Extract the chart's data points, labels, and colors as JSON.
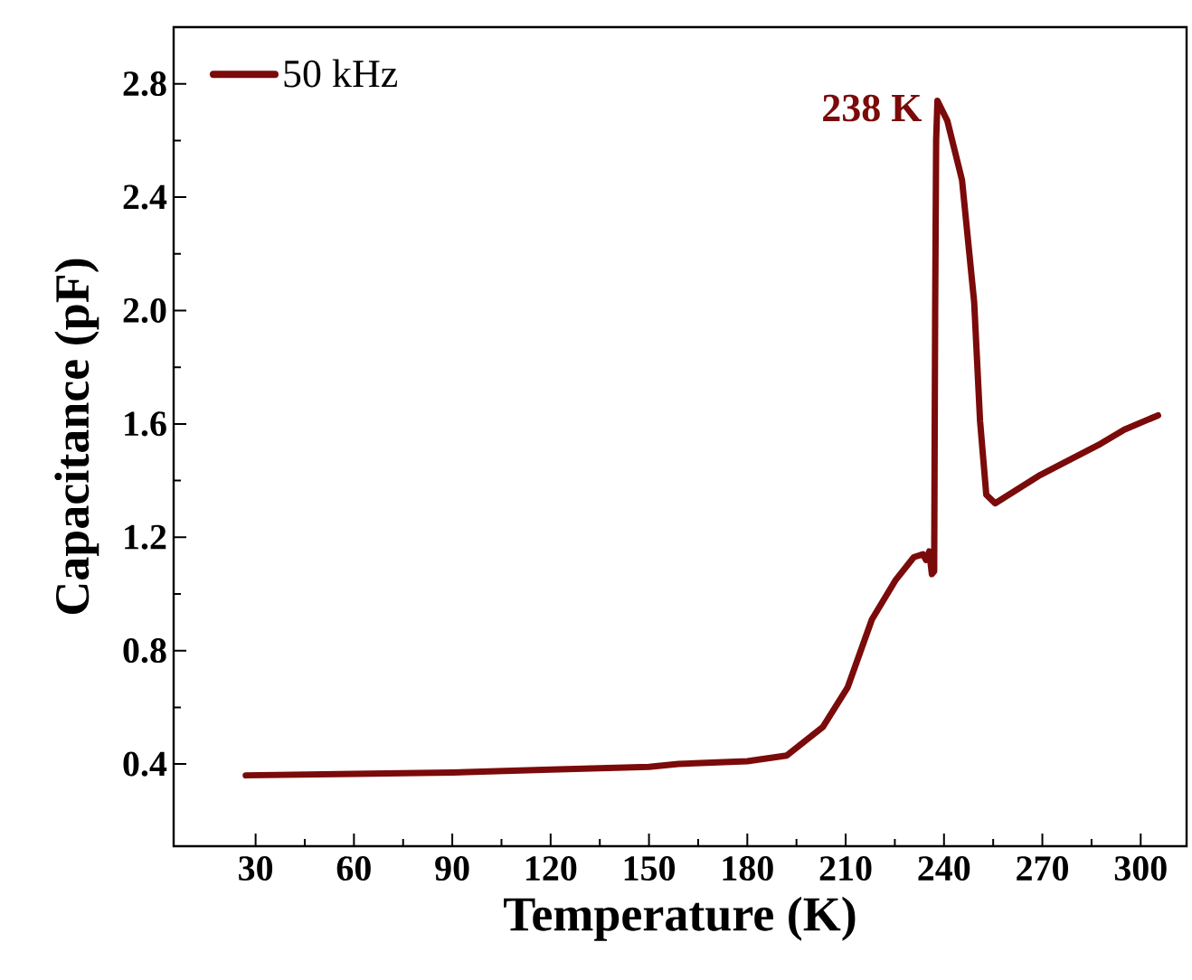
{
  "chart_data": {
    "type": "line",
    "xlabel": "Temperature (K)",
    "ylabel": "Capacitance (pF)",
    "xlim": [
      5,
      314
    ],
    "ylim": [
      0.11,
      3.0
    ],
    "xticks": [
      30,
      60,
      90,
      120,
      150,
      180,
      210,
      240,
      270,
      300
    ],
    "yticks": [
      0.4,
      0.8,
      1.2,
      1.6,
      {
        "value": 2.0,
        "label": "2.0"
      },
      2.4,
      2.8
    ],
    "legend": "top left",
    "annotations": [
      {
        "text": "238 K",
        "x": 238,
        "y": 2.74
      }
    ],
    "series": [
      {
        "name": "50 kHz",
        "color": "#7b0a0a",
        "x": [
          27,
          60,
          90,
          120,
          150,
          159,
          180,
          192,
          203,
          210.6,
          218,
          225.3,
          230.8,
          233.6,
          234.5,
          235.5,
          236.3,
          237,
          237.3,
          237.6,
          238,
          241,
          245.5,
          249.2,
          251,
          252.9,
          255.6,
          269.4,
          287.8,
          295,
          305.3
        ],
        "values": [
          0.36,
          0.365,
          0.37,
          0.38,
          0.39,
          0.4,
          0.41,
          0.43,
          0.53,
          0.67,
          0.91,
          1.05,
          1.13,
          1.14,
          1.12,
          1.15,
          1.07,
          1.08,
          2.0,
          2.6,
          2.74,
          2.67,
          2.46,
          2.03,
          1.61,
          1.35,
          1.32,
          1.42,
          1.53,
          1.58,
          1.63
        ]
      }
    ]
  }
}
